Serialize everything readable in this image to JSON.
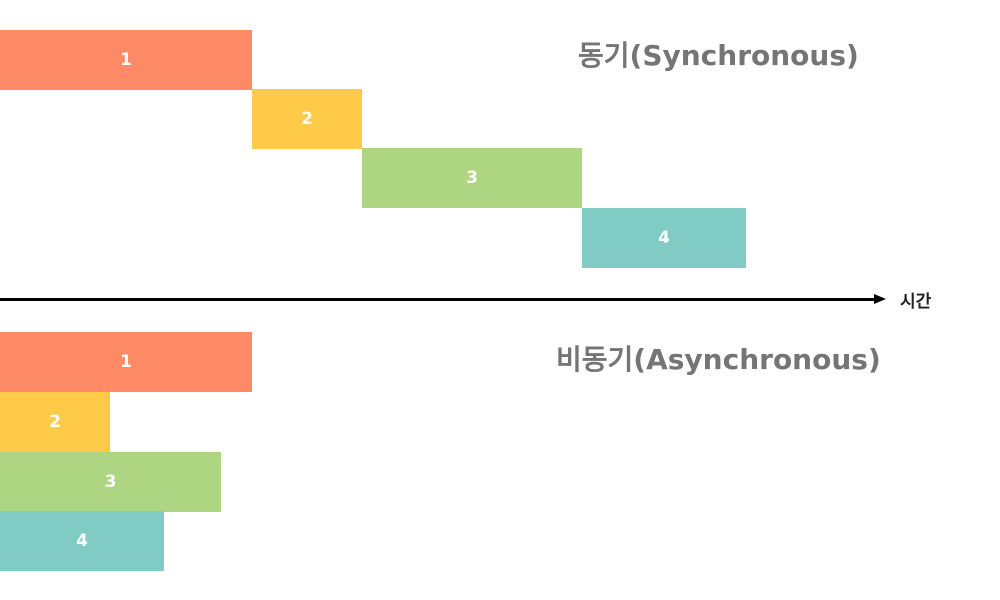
{
  "diagram": {
    "sync": {
      "title": "동기(Synchronous)",
      "tasks": [
        {
          "label": "1",
          "color": "#FF8A65"
        },
        {
          "label": "2",
          "color": "#FFCA47"
        },
        {
          "label": "3",
          "color": "#AED581"
        },
        {
          "label": "4",
          "color": "#80CBC4"
        }
      ]
    },
    "async": {
      "title": "비동기(Asynchronous)",
      "tasks": [
        {
          "label": "1",
          "color": "#FF8A65"
        },
        {
          "label": "2",
          "color": "#FFCA47"
        },
        {
          "label": "3",
          "color": "#AED581"
        },
        {
          "label": "4",
          "color": "#80CBC4"
        }
      ]
    },
    "axis": {
      "label": "시간"
    }
  }
}
